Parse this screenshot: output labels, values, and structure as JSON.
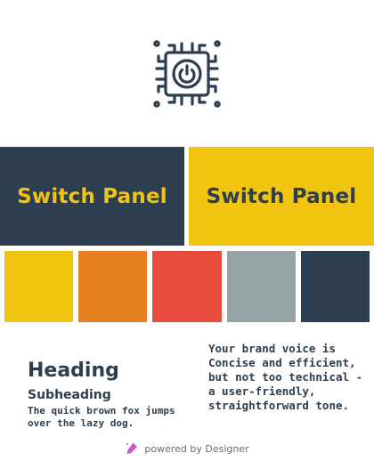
{
  "brand": {
    "name": "Switch Panel",
    "icon": "circuit-power-icon"
  },
  "colors": {
    "navy": "#2c3e50",
    "yellow": "#f1c40f",
    "orange": "#e67e22",
    "red": "#e74c3c",
    "gray": "#95a5a6",
    "white": "#ffffff"
  },
  "palette": [
    "#f1c40f",
    "#e67e22",
    "#e74c3c",
    "#95a5a6",
    "#2c3e50"
  ],
  "typography": {
    "heading": "Heading",
    "subheading": "Subheading",
    "sample": "The quick brown fox jumps over the lazy dog."
  },
  "voice": {
    "intro": "Your brand voice is",
    "description": "Concise and efficient, but not too technical - a user-friendly, straightforward tone."
  },
  "footer": {
    "label": "powered by Designer",
    "icon": "designer-logo-icon"
  }
}
